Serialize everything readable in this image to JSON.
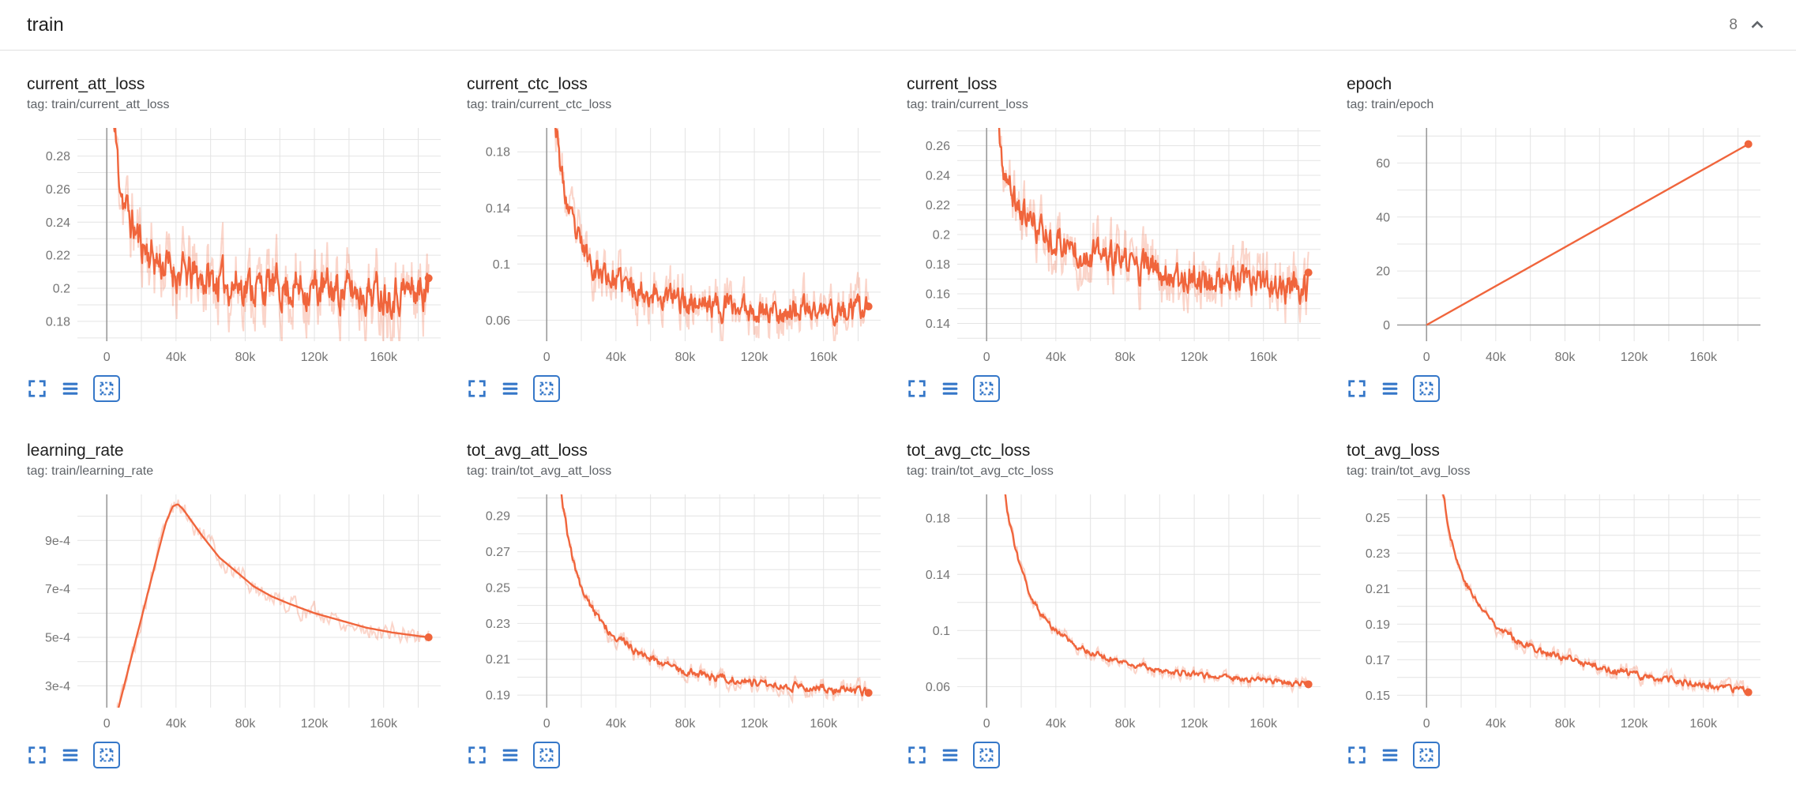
{
  "header": {
    "title": "train",
    "count": "8"
  },
  "colors": {
    "line": "#f0653c",
    "line_raw_opacity": 0.27,
    "icon": "#3577c8",
    "grid": "#e4e4e4",
    "zero_axis": "#9b9b9b",
    "tick_text": "#757575",
    "title_text": "#212121",
    "tag_text": "#5f6368",
    "header_border": "#e0e0e0"
  },
  "icons": {
    "header_collapse": "chevron-up-icon",
    "toolbar": [
      "fullscreen-icon",
      "data-list-icon",
      "fit-to-data-icon"
    ]
  },
  "chart_data": [
    {
      "type": "line",
      "title": "current_att_loss",
      "tag": "tag: train/current_att_loss",
      "x_tick_labels": [
        "0",
        "40k",
        "80k",
        "120k",
        "160k"
      ],
      "x_tick_vals": [
        0,
        40000,
        80000,
        120000,
        160000
      ],
      "y_tick_labels": [
        "0.18",
        "0.2",
        "0.22",
        "0.24",
        "0.26",
        "0.28"
      ],
      "y_tick_vals": [
        0.18,
        0.2,
        0.22,
        0.24,
        0.26,
        0.28
      ],
      "x_range": [
        -17000,
        193000
      ],
      "y_range": [
        0.168,
        0.297
      ],
      "x_data_max": 186000,
      "trend": [
        [
          0,
          0.4
        ],
        [
          2000,
          0.34
        ],
        [
          4000,
          0.3
        ],
        [
          7000,
          0.27
        ],
        [
          10000,
          0.252
        ],
        [
          14000,
          0.24
        ],
        [
          18000,
          0.231
        ],
        [
          24000,
          0.222
        ],
        [
          30000,
          0.216
        ],
        [
          40000,
          0.21
        ],
        [
          55000,
          0.206
        ],
        [
          70000,
          0.203
        ],
        [
          90000,
          0.201
        ],
        [
          110000,
          0.2
        ],
        [
          130000,
          0.199
        ],
        [
          160000,
          0.198
        ],
        [
          186000,
          0.199
        ]
      ],
      "noise": 0.0095,
      "noise_raw": 0.021,
      "samples": 420,
      "seed": 11,
      "end_dot": true
    },
    {
      "type": "line",
      "title": "current_ctc_loss",
      "tag": "tag: train/current_ctc_loss",
      "x_tick_labels": [
        "0",
        "40k",
        "80k",
        "120k",
        "160k"
      ],
      "x_tick_vals": [
        0,
        40000,
        80000,
        120000,
        160000
      ],
      "y_tick_labels": [
        "0.06",
        "0.1",
        "0.14",
        "0.18"
      ],
      "y_tick_vals": [
        0.06,
        0.1,
        0.14,
        0.18
      ],
      "x_range": [
        -17000,
        193000
      ],
      "y_range": [
        0.045,
        0.197
      ],
      "x_data_max": 186000,
      "trend": [
        [
          0,
          0.32
        ],
        [
          2000,
          0.26
        ],
        [
          4000,
          0.215
        ],
        [
          7000,
          0.178
        ],
        [
          10000,
          0.152
        ],
        [
          14000,
          0.131
        ],
        [
          18000,
          0.117
        ],
        [
          24000,
          0.104
        ],
        [
          30000,
          0.096
        ],
        [
          40000,
          0.088
        ],
        [
          55000,
          0.081
        ],
        [
          70000,
          0.076
        ],
        [
          90000,
          0.072
        ],
        [
          110000,
          0.069
        ],
        [
          130000,
          0.067
        ],
        [
          160000,
          0.066
        ],
        [
          186000,
          0.066
        ]
      ],
      "noise": 0.0075,
      "noise_raw": 0.017,
      "samples": 420,
      "seed": 23,
      "end_dot": true
    },
    {
      "type": "line",
      "title": "current_loss",
      "tag": "tag: train/current_loss",
      "x_tick_labels": [
        "0",
        "40k",
        "80k",
        "120k",
        "160k"
      ],
      "x_tick_vals": [
        0,
        40000,
        80000,
        120000,
        160000
      ],
      "y_tick_labels": [
        "0.14",
        "0.16",
        "0.18",
        "0.2",
        "0.22",
        "0.24",
        "0.26"
      ],
      "y_tick_vals": [
        0.14,
        0.16,
        0.18,
        0.2,
        0.22,
        0.24,
        0.26
      ],
      "x_range": [
        -17000,
        193000
      ],
      "y_range": [
        0.128,
        0.272
      ],
      "x_data_max": 186000,
      "trend": [
        [
          0,
          0.4
        ],
        [
          2000,
          0.34
        ],
        [
          4000,
          0.295
        ],
        [
          7000,
          0.262
        ],
        [
          10000,
          0.243
        ],
        [
          14000,
          0.228
        ],
        [
          18000,
          0.219
        ],
        [
          24000,
          0.21
        ],
        [
          30000,
          0.204
        ],
        [
          40000,
          0.196
        ],
        [
          55000,
          0.189
        ],
        [
          70000,
          0.184
        ],
        [
          90000,
          0.178
        ],
        [
          110000,
          0.173
        ],
        [
          130000,
          0.169
        ],
        [
          160000,
          0.165
        ],
        [
          186000,
          0.163
        ]
      ],
      "noise": 0.0085,
      "noise_raw": 0.019,
      "samples": 420,
      "seed": 37,
      "end_dot": true
    },
    {
      "type": "line",
      "title": "epoch",
      "tag": "tag: train/epoch",
      "x_tick_labels": [
        "0",
        "40k",
        "80k",
        "120k",
        "160k"
      ],
      "x_tick_vals": [
        0,
        40000,
        80000,
        120000,
        160000
      ],
      "y_tick_labels": [
        "0",
        "20",
        "40",
        "60"
      ],
      "y_tick_vals": [
        0,
        20,
        40,
        60
      ],
      "x_range": [
        -17000,
        193000
      ],
      "y_range": [
        -6,
        73
      ],
      "x_data_max": 186000,
      "trend": [
        [
          0,
          0
        ],
        [
          186000,
          67
        ]
      ],
      "noise": 0,
      "noise_raw": 0,
      "samples": 2,
      "seed": 1,
      "end_dot": true
    },
    {
      "type": "line",
      "title": "learning_rate",
      "tag": "tag: train/learning_rate",
      "x_tick_labels": [
        "0",
        "40k",
        "80k",
        "120k",
        "160k"
      ],
      "x_tick_vals": [
        0,
        40000,
        80000,
        120000,
        160000
      ],
      "y_tick_labels": [
        "3e-4",
        "5e-4",
        "7e-4",
        "9e-4"
      ],
      "y_tick_vals": [
        0.0003,
        0.0005,
        0.0007,
        0.0009
      ],
      "x_range": [
        -17000,
        193000
      ],
      "y_range": [
        0.00021,
        0.00109
      ],
      "x_data_max": 186000,
      "trend": [
        [
          0,
          2e-05
        ],
        [
          5000,
          0.00016
        ],
        [
          10000,
          0.0003
        ],
        [
          15000,
          0.00044
        ],
        [
          20000,
          0.00058
        ],
        [
          25000,
          0.00072
        ],
        [
          30000,
          0.00086
        ],
        [
          34000,
          0.00097
        ],
        [
          38000,
          0.00104
        ],
        [
          41000,
          0.00105
        ],
        [
          44000,
          0.00103
        ],
        [
          48000,
          0.00099
        ],
        [
          55000,
          0.00092
        ],
        [
          65000,
          0.00083
        ],
        [
          75000,
          0.00077
        ],
        [
          85000,
          0.00071
        ],
        [
          95000,
          0.00067
        ],
        [
          105000,
          0.00064
        ],
        [
          120000,
          0.0006
        ],
        [
          135000,
          0.00057
        ],
        [
          150000,
          0.00054
        ],
        [
          165000,
          0.00052
        ],
        [
          186000,
          0.0005
        ]
      ],
      "noise": 0,
      "noise_raw": 3.5e-05,
      "samples": 240,
      "seed": 5,
      "end_dot": true
    },
    {
      "type": "line",
      "title": "tot_avg_att_loss",
      "tag": "tag: train/tot_avg_att_loss",
      "x_tick_labels": [
        "0",
        "40k",
        "80k",
        "120k",
        "160k"
      ],
      "x_tick_vals": [
        0,
        40000,
        80000,
        120000,
        160000
      ],
      "y_tick_labels": [
        "0.19",
        "0.21",
        "0.23",
        "0.25",
        "0.27",
        "0.29"
      ],
      "y_tick_vals": [
        0.19,
        0.21,
        0.23,
        0.25,
        0.27,
        0.29
      ],
      "x_range": [
        -17000,
        193000
      ],
      "y_range": [
        0.183,
        0.302
      ],
      "x_data_max": 186000,
      "trend": [
        [
          0,
          0.4
        ],
        [
          3000,
          0.36
        ],
        [
          6000,
          0.325
        ],
        [
          9000,
          0.298
        ],
        [
          12000,
          0.28
        ],
        [
          16000,
          0.262
        ],
        [
          20000,
          0.25
        ],
        [
          25000,
          0.24
        ],
        [
          30000,
          0.233
        ],
        [
          36000,
          0.2265
        ],
        [
          42000,
          0.2215
        ],
        [
          50000,
          0.2155
        ],
        [
          60000,
          0.2105
        ],
        [
          70000,
          0.2065
        ],
        [
          80000,
          0.2035
        ],
        [
          95000,
          0.2005
        ],
        [
          110000,
          0.1985
        ],
        [
          130000,
          0.1962
        ],
        [
          150000,
          0.1945
        ],
        [
          170000,
          0.1928
        ],
        [
          186000,
          0.1915
        ]
      ],
      "noise": 0.0018,
      "noise_raw": 0.0045,
      "samples": 360,
      "seed": 51,
      "end_dot": true
    },
    {
      "type": "line",
      "title": "tot_avg_ctc_loss",
      "tag": "tag: train/tot_avg_ctc_loss",
      "x_tick_labels": [
        "0",
        "40k",
        "80k",
        "120k",
        "160k"
      ],
      "x_tick_vals": [
        0,
        40000,
        80000,
        120000,
        160000
      ],
      "y_tick_labels": [
        "0.06",
        "0.1",
        "0.14",
        "0.18"
      ],
      "y_tick_vals": [
        0.06,
        0.1,
        0.14,
        0.18
      ],
      "x_range": [
        -17000,
        193000
      ],
      "y_range": [
        0.045,
        0.197
      ],
      "x_data_max": 186000,
      "trend": [
        [
          0,
          0.34
        ],
        [
          3000,
          0.29
        ],
        [
          6000,
          0.245
        ],
        [
          9000,
          0.212
        ],
        [
          12000,
          0.186
        ],
        [
          16000,
          0.16
        ],
        [
          20000,
          0.142
        ],
        [
          25000,
          0.126
        ],
        [
          30000,
          0.1145
        ],
        [
          36000,
          0.1045
        ],
        [
          42000,
          0.0975
        ],
        [
          50000,
          0.0905
        ],
        [
          60000,
          0.0845
        ],
        [
          70000,
          0.0805
        ],
        [
          80000,
          0.0775
        ],
        [
          95000,
          0.0735
        ],
        [
          110000,
          0.0705
        ],
        [
          130000,
          0.0675
        ],
        [
          150000,
          0.0655
        ],
        [
          170000,
          0.0635
        ],
        [
          186000,
          0.0615
        ]
      ],
      "noise": 0.0017,
      "noise_raw": 0.0042,
      "samples": 360,
      "seed": 63,
      "end_dot": true
    },
    {
      "type": "line",
      "title": "tot_avg_loss",
      "tag": "tag: train/tot_avg_loss",
      "x_tick_labels": [
        "0",
        "40k",
        "80k",
        "120k",
        "160k"
      ],
      "x_tick_vals": [
        0,
        40000,
        80000,
        120000,
        160000
      ],
      "y_tick_labels": [
        "0.15",
        "0.17",
        "0.19",
        "0.21",
        "0.23",
        "0.25"
      ],
      "y_tick_vals": [
        0.15,
        0.17,
        0.19,
        0.21,
        0.23,
        0.25
      ],
      "x_range": [
        -17000,
        193000
      ],
      "y_range": [
        0.143,
        0.263
      ],
      "x_data_max": 186000,
      "trend": [
        [
          0,
          0.37
        ],
        [
          3000,
          0.33
        ],
        [
          6000,
          0.295
        ],
        [
          9000,
          0.268
        ],
        [
          12000,
          0.249
        ],
        [
          16000,
          0.231
        ],
        [
          20000,
          0.219
        ],
        [
          25000,
          0.209
        ],
        [
          30000,
          0.201
        ],
        [
          36000,
          0.194
        ],
        [
          42000,
          0.1885
        ],
        [
          50000,
          0.1825
        ],
        [
          60000,
          0.1775
        ],
        [
          70000,
          0.1735
        ],
        [
          80000,
          0.1705
        ],
        [
          95000,
          0.167
        ],
        [
          110000,
          0.1635
        ],
        [
          130000,
          0.16
        ],
        [
          150000,
          0.157
        ],
        [
          170000,
          0.154
        ],
        [
          186000,
          0.152
        ]
      ],
      "noise": 0.0016,
      "noise_raw": 0.004,
      "samples": 360,
      "seed": 77,
      "end_dot": true
    }
  ]
}
